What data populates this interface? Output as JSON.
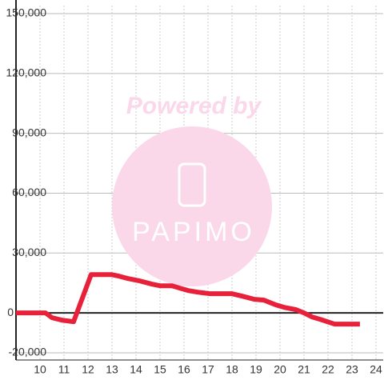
{
  "chart_data": {
    "type": "line",
    "watermark": [
      "Powered by",
      "PAPIMO"
    ],
    "x": [
      9.0,
      10.23,
      10.5,
      10.9,
      11.4,
      12.13,
      12.5,
      12.97,
      13.3,
      13.67,
      14.17,
      14.67,
      15.0,
      15.5,
      15.83,
      16.17,
      16.57,
      17.1,
      18.0,
      18.43,
      18.93,
      19.33,
      19.83,
      20.17,
      20.67,
      21.0,
      21.33,
      21.67,
      22.27,
      23.33
    ],
    "series": [
      {
        "color": "#e8213a",
        "values": [
          0,
          0,
          -2400,
          -3600,
          -4400,
          19200,
          19200,
          19200,
          18400,
          17200,
          16000,
          14400,
          13600,
          13600,
          12400,
          11200,
          10400,
          9600,
          9600,
          8400,
          6800,
          6400,
          4000,
          2800,
          1600,
          0,
          -2000,
          -3200,
          -5600,
          -5600
        ]
      }
    ],
    "xlim": [
      9,
      24.3
    ],
    "xticks": [
      10,
      11,
      12,
      13,
      14,
      15,
      16,
      17,
      18,
      19,
      20,
      21,
      22,
      23,
      24
    ],
    "ylim": [
      -20000,
      150000
    ],
    "yticks": [
      {
        "value": -20000,
        "label": "-20,000"
      },
      0,
      {
        "value": 30000,
        "label": "30,000"
      },
      {
        "value": 60000,
        "label": "60,000"
      },
      {
        "value": 90000,
        "label": "90,000"
      },
      {
        "value": 120000,
        "label": "120,000"
      },
      {
        "value": 150000,
        "label": "150,000"
      }
    ],
    "grid": true
  }
}
